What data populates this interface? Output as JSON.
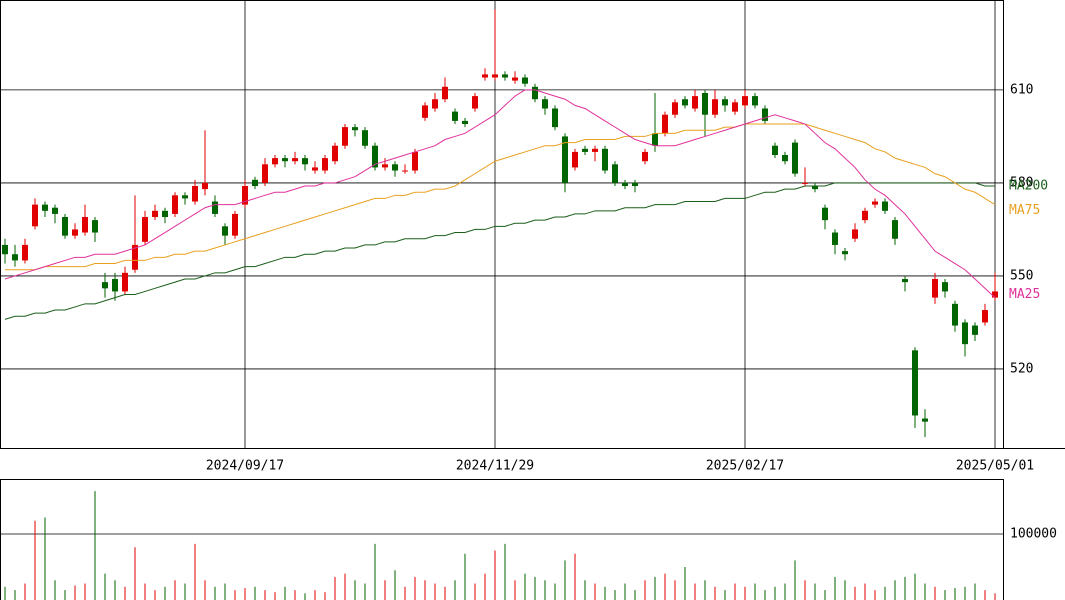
{
  "chart_data": {
    "type": "candlestick",
    "categories": [
      null,
      null,
      null,
      null,
      null,
      null,
      null,
      null,
      null,
      null,
      null,
      null,
      null,
      null,
      null,
      null,
      null,
      null,
      null,
      null,
      null,
      null,
      null,
      null,
      "2024/09/17",
      null,
      null,
      null,
      null,
      null,
      null,
      null,
      null,
      null,
      null,
      null,
      null,
      null,
      null,
      null,
      null,
      null,
      null,
      null,
      null,
      null,
      null,
      null,
      null,
      "2024/11/29",
      null,
      null,
      null,
      null,
      null,
      null,
      null,
      null,
      null,
      null,
      null,
      null,
      null,
      null,
      null,
      null,
      null,
      null,
      null,
      null,
      null,
      null,
      null,
      null,
      "2025/02/17",
      null,
      null,
      null,
      null,
      null,
      null,
      null,
      null,
      null,
      null,
      null,
      null,
      null,
      null,
      null,
      null,
      null,
      null,
      null,
      null,
      null,
      null,
      null,
      null,
      "2025/05/01"
    ],
    "candles": [
      [
        560,
        562,
        554,
        557
      ],
      [
        557,
        560,
        553,
        555
      ],
      [
        555,
        562,
        554,
        560
      ],
      [
        566,
        575,
        565,
        573
      ],
      [
        573,
        574,
        569,
        571
      ],
      [
        572,
        573,
        567,
        570
      ],
      [
        569,
        570,
        562,
        563
      ],
      [
        563,
        567,
        562,
        565
      ],
      [
        564,
        573,
        563,
        569
      ],
      [
        568,
        569,
        561,
        564
      ],
      [
        548,
        551,
        543,
        546
      ],
      [
        549,
        551,
        542,
        545
      ],
      [
        545,
        553,
        544,
        551
      ],
      [
        552,
        576,
        551,
        560
      ],
      [
        561,
        571,
        560,
        569
      ],
      [
        569,
        573,
        568,
        571
      ],
      [
        571,
        572,
        567,
        569
      ],
      [
        570,
        577,
        569,
        576
      ],
      [
        576,
        577,
        573,
        575
      ],
      [
        574,
        581,
        573,
        579
      ],
      [
        578,
        597,
        576,
        580
      ],
      [
        574,
        576,
        569,
        570
      ],
      [
        566,
        567,
        560,
        563
      ],
      [
        563,
        571,
        562,
        570
      ],
      [
        573,
        581,
        572,
        579
      ],
      [
        581,
        582,
        578,
        579
      ],
      [
        580,
        588,
        579,
        586
      ],
      [
        586,
        589,
        585,
        588
      ],
      [
        588,
        589,
        585,
        587
      ],
      [
        587,
        590,
        586,
        588
      ],
      [
        588,
        589,
        584,
        586
      ],
      [
        584,
        587,
        583,
        585
      ],
      [
        584,
        589,
        583,
        588
      ],
      [
        587,
        593,
        586,
        592
      ],
      [
        592,
        599,
        591,
        598
      ],
      [
        598,
        599,
        595,
        597
      ],
      [
        597,
        598,
        591,
        592
      ],
      [
        592,
        593,
        584,
        585
      ],
      [
        585,
        588,
        584,
        586
      ],
      [
        586,
        587,
        582,
        584
      ],
      [
        584,
        586,
        583,
        584
      ],
      [
        584,
        591,
        583,
        590
      ],
      [
        601,
        606,
        600,
        605
      ],
      [
        604,
        609,
        603,
        607
      ],
      [
        607,
        614,
        606,
        611
      ],
      [
        603,
        604,
        599,
        600
      ],
      [
        600,
        601,
        598,
        599
      ],
      [
        604,
        609,
        603,
        608
      ],
      [
        614,
        617,
        613,
        615
      ],
      [
        614,
        636,
        613,
        615
      ],
      [
        615,
        616,
        613,
        614
      ],
      [
        613,
        616,
        612,
        614
      ],
      [
        614,
        615,
        611,
        612
      ],
      [
        611,
        612,
        606,
        607
      ],
      [
        607,
        608,
        602,
        604
      ],
      [
        604,
        605,
        597,
        598
      ],
      [
        595,
        596,
        577,
        580
      ],
      [
        585,
        591,
        584,
        590
      ],
      [
        591,
        592,
        589,
        590
      ],
      [
        590,
        592,
        587,
        591
      ],
      [
        591,
        592,
        583,
        584
      ],
      [
        586,
        587,
        579,
        580
      ],
      [
        580,
        581,
        578,
        579
      ],
      [
        580,
        581,
        577,
        579
      ],
      [
        587,
        591,
        586,
        590
      ],
      [
        596,
        609,
        590,
        592
      ],
      [
        596,
        603,
        595,
        602
      ],
      [
        602,
        607,
        601,
        606
      ],
      [
        607,
        608,
        604,
        605
      ],
      [
        604,
        610,
        603,
        608
      ],
      [
        609,
        610,
        595,
        602
      ],
      [
        602,
        610,
        601,
        607
      ],
      [
        607,
        608,
        603,
        605
      ],
      [
        603,
        607,
        602,
        606
      ],
      [
        605,
        610,
        604,
        608
      ],
      [
        608,
        609,
        604,
        605
      ],
      [
        604,
        605,
        599,
        600
      ],
      [
        592,
        593,
        588,
        589
      ],
      [
        589,
        590,
        586,
        587
      ],
      [
        593,
        594,
        582,
        583
      ],
      [
        580,
        585,
        579,
        580
      ],
      [
        579,
        580,
        577,
        578
      ],
      [
        572,
        573,
        565,
        568
      ],
      [
        564,
        565,
        557,
        560
      ],
      [
        558,
        559,
        555,
        557
      ],
      [
        562,
        567,
        561,
        565
      ],
      [
        568,
        572,
        567,
        571
      ],
      [
        573,
        575,
        572,
        574
      ],
      [
        574,
        575,
        570,
        571
      ],
      [
        568,
        569,
        560,
        562
      ],
      [
        549,
        550,
        545,
        548
      ],
      [
        526,
        527,
        501,
        505
      ],
      [
        504,
        507,
        498,
        503
      ],
      [
        543,
        551,
        541,
        549
      ],
      [
        548,
        549,
        543,
        545
      ],
      [
        541,
        542,
        532,
        534
      ],
      [
        535,
        536,
        524,
        528
      ],
      [
        534,
        535,
        529,
        531
      ],
      [
        535,
        541,
        534,
        539
      ],
      [
        543,
        551,
        542,
        545
      ]
    ],
    "up_color": "#e00000",
    "down_color": "#006400",
    "ylim": [
      494.5,
      639
    ],
    "yticks": [
      520,
      550,
      580,
      610
    ],
    "grid": true,
    "series": [
      {
        "name": "MA200",
        "color": "#1a5e1a",
        "values": [
          536,
          537,
          537,
          538,
          538,
          539,
          539,
          540,
          541,
          541,
          542,
          543,
          544,
          544,
          545,
          546,
          547,
          548,
          549,
          549,
          550,
          551,
          551,
          552,
          553,
          553,
          554,
          555,
          556,
          556,
          557,
          557,
          558,
          558,
          559,
          559,
          560,
          560,
          561,
          561,
          562,
          562,
          562,
          563,
          563,
          564,
          564,
          565,
          565,
          566,
          566,
          567,
          567,
          568,
          568,
          569,
          569,
          570,
          570,
          571,
          571,
          571,
          572,
          572,
          572,
          573,
          573,
          573,
          574,
          574,
          574,
          574,
          575,
          575,
          575,
          576,
          577,
          577,
          578,
          578,
          579,
          579,
          579,
          580,
          580,
          580,
          580,
          580,
          580,
          580,
          580,
          580,
          580,
          580,
          580,
          580,
          580,
          580,
          579,
          579
        ]
      },
      {
        "name": "MA75",
        "color": "#e8a020",
        "values": [
          552,
          552,
          552,
          552,
          553,
          553,
          553,
          553,
          553,
          554,
          554,
          554,
          555,
          555,
          555,
          556,
          556,
          557,
          557,
          558,
          558,
          559,
          560,
          561,
          562,
          563,
          564,
          565,
          566,
          567,
          568,
          569,
          570,
          571,
          572,
          573,
          574,
          575,
          575,
          576,
          576,
          577,
          577,
          578,
          578,
          579,
          581,
          583,
          585,
          587,
          588,
          589,
          590,
          591,
          592,
          592,
          593,
          593,
          594,
          594,
          594,
          594,
          595,
          595,
          595,
          596,
          596,
          596,
          597,
          597,
          597,
          597,
          598,
          598,
          599,
          599,
          599,
          599,
          599,
          599,
          599,
          598,
          597,
          596,
          595,
          594,
          593,
          591,
          590,
          588,
          587,
          586,
          585,
          583,
          582,
          580,
          578,
          577,
          575,
          573
        ]
      },
      {
        "name": "MA25",
        "color": "#e0309b",
        "values": [
          549,
          550,
          551,
          552,
          553,
          554,
          555,
          556,
          556,
          557,
          557,
          557,
          558,
          559,
          560,
          562,
          564,
          566,
          568,
          570,
          572,
          573,
          573,
          573,
          574,
          575,
          576,
          577,
          577,
          578,
          579,
          579,
          580,
          580,
          581,
          582,
          584,
          586,
          587,
          588,
          589,
          590,
          591,
          592,
          594,
          595,
          596,
          598,
          600,
          602,
          605,
          608,
          610,
          610,
          609,
          608,
          607,
          605,
          604,
          602,
          600,
          598,
          596,
          594,
          593,
          592,
          592,
          592,
          593,
          594,
          595,
          596,
          597,
          598,
          599,
          600,
          601,
          602,
          601,
          600,
          599,
          596,
          593,
          591,
          588,
          585,
          581,
          578,
          576,
          573,
          570,
          566,
          562,
          558,
          556,
          554,
          552,
          549,
          546,
          543
        ]
      }
    ],
    "volume": {
      "ylim": [
        0,
        181818
      ],
      "yticks": [
        100000
      ],
      "values": [
        20000,
        15000,
        25000,
        120000,
        125000,
        30000,
        15000,
        22000,
        25000,
        165000,
        40000,
        30000,
        20000,
        80000,
        25000,
        15000,
        20000,
        30000,
        25000,
        85000,
        30000,
        20000,
        25000,
        15000,
        18000,
        20000,
        15000,
        12000,
        20000,
        15000,
        10000,
        15000,
        12000,
        35000,
        40000,
        30000,
        25000,
        85000,
        30000,
        45000,
        20000,
        35000,
        30000,
        25000,
        20000,
        30000,
        70000,
        25000,
        40000,
        75000,
        85000,
        30000,
        40000,
        35000,
        30000,
        25000,
        60000,
        70000,
        30000,
        25000,
        20000,
        15000,
        25000,
        15000,
        30000,
        35000,
        40000,
        30000,
        50000,
        25000,
        30000,
        20000,
        15000,
        25000,
        20000,
        25000,
        15000,
        20000,
        25000,
        60000,
        30000,
        25000,
        15000,
        35000,
        30000,
        20000,
        25000,
        15000,
        20000,
        30000,
        35000,
        40000,
        25000,
        20000,
        15000,
        18000,
        20000,
        25000,
        15000,
        10000
      ]
    }
  }
}
